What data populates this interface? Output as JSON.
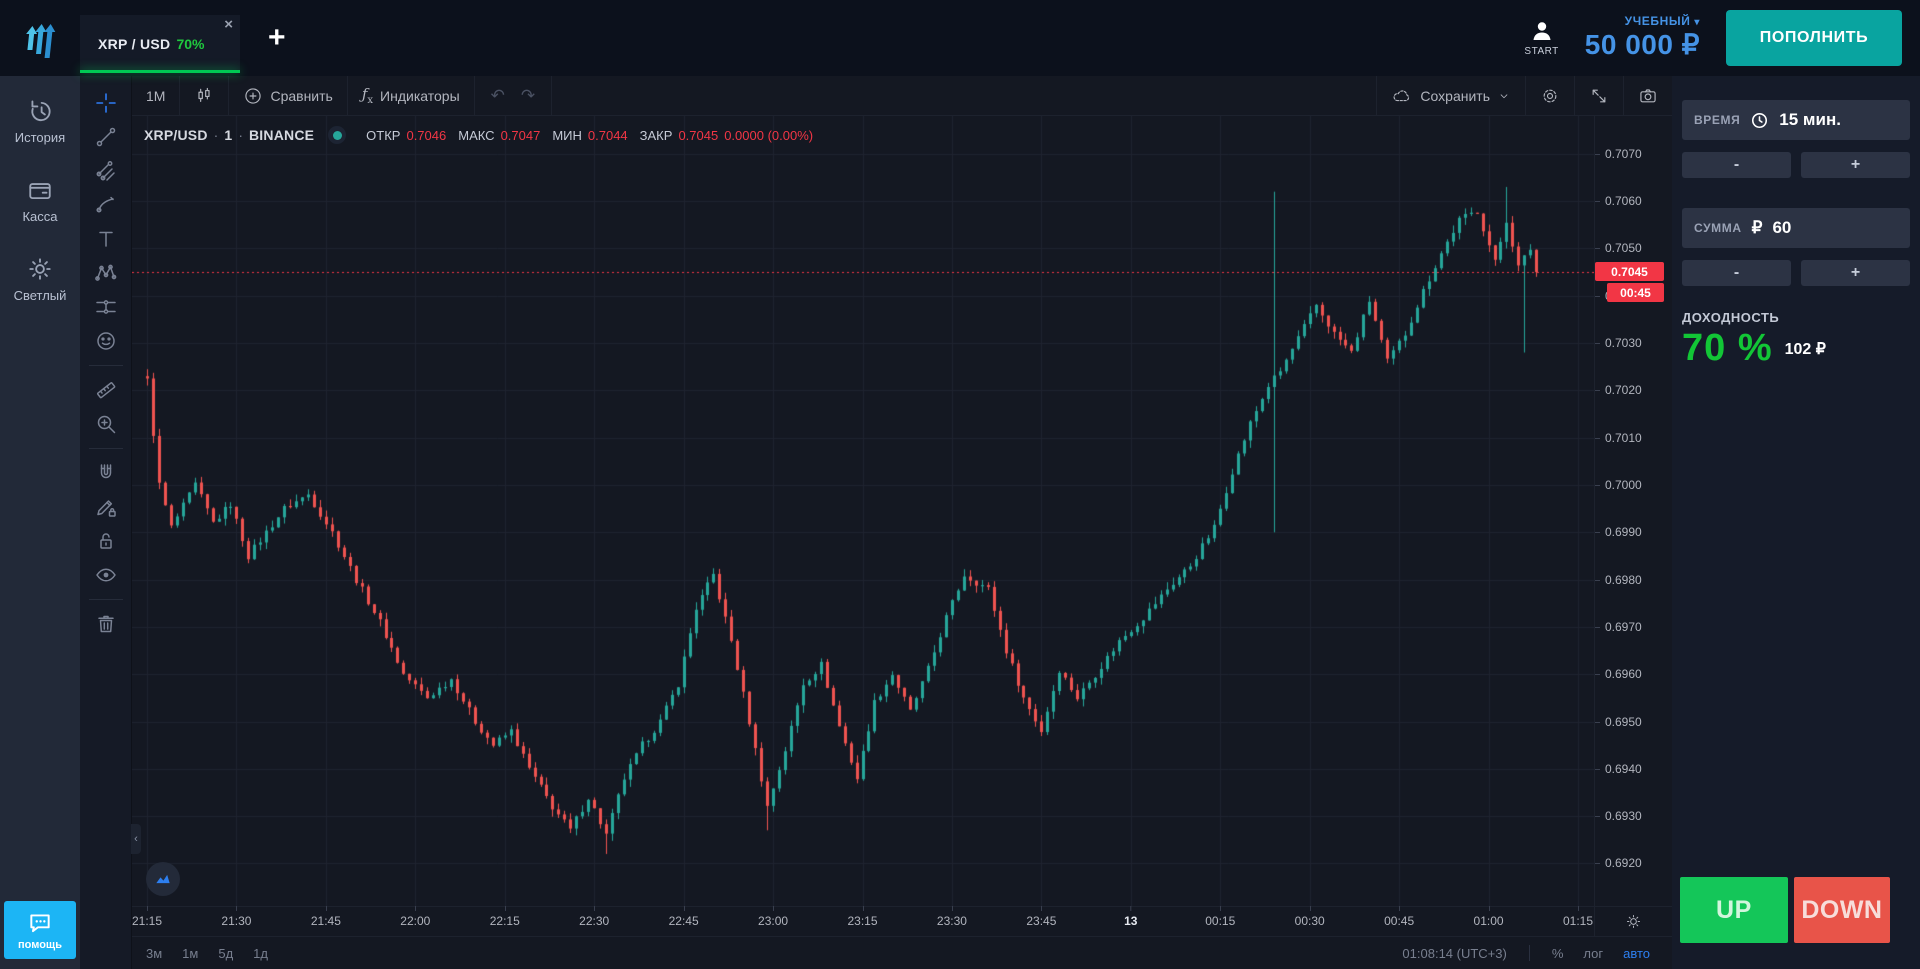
{
  "topbar": {
    "tab": {
      "symbol": "XRP / USD",
      "payout": "70%",
      "close": "×"
    },
    "new_tab": "+",
    "start_label": "START",
    "account_type": "УЧЕБНЫЙ",
    "account_caret": "▾",
    "balance": "50 000 ₽",
    "deposit_label": "ПОПОЛНИТЬ"
  },
  "sidebar": {
    "items": [
      {
        "label": "История",
        "icon": "history-icon"
      },
      {
        "label": "Касса",
        "icon": "wallet-icon"
      },
      {
        "label": "Светлый",
        "icon": "theme-sun-icon"
      }
    ],
    "help_label": "помощь"
  },
  "chart_toolbar": {
    "interval": "1М",
    "compare": "Сравнить",
    "indicators": "Индикаторы",
    "undo": "↶",
    "redo": "↷",
    "save": "Сохранить"
  },
  "legend": {
    "symbol": "XRP/USD",
    "sep": "·",
    "interval": "1",
    "exchange": "BINANCE",
    "open_label": "ОТКР",
    "open": "0.7046",
    "high_label": "МАКС",
    "high": "0.7047",
    "low_label": "МИН",
    "low": "0.7044",
    "close_label": "ЗАКР",
    "close": "0.7045",
    "change": "0.0000 (0.00%)"
  },
  "drawing_tools": [
    "crosshair",
    "trend-line",
    "gann-fib",
    "brush",
    "text",
    "xabcd-pattern",
    "projection",
    "emoji",
    "ruler",
    "zoom-in",
    "magnet",
    "drawing-lock",
    "lock-all",
    "hide-all",
    "remove-all"
  ],
  "trade_panel": {
    "time_label": "ВРЕМЯ",
    "time_value": "15 мин.",
    "minus": "-",
    "plus": "+",
    "amount_label": "СУММА",
    "currency": "₽",
    "amount_value": "60",
    "payout_label": "ДОХОДНОСТЬ",
    "payout_percent": "70 %",
    "payout_amount": "102 ₽",
    "up_label": "UP",
    "down_label": "DOWN"
  },
  "bottom_bar": {
    "ranges": [
      "3м",
      "1м",
      "5д",
      "1д"
    ],
    "clock": "01:08:14 (UTC+3)",
    "percent": "%",
    "log": "лог",
    "auto": "авто"
  },
  "collapse_glyph": "‹",
  "chart_data": {
    "type": "candlestick",
    "symbol": "XRP/USD",
    "exchange": "BINANCE",
    "interval_minutes": 1,
    "x_range": [
      "21:15",
      "01:15"
    ],
    "y_domain": [
      0.6911,
      0.7078
    ],
    "price_ticks": [
      "0.7070",
      "0.7060",
      "0.7050",
      "0.7040",
      "0.7030",
      "0.7020",
      "0.7010",
      "0.7000",
      "0.6990",
      "0.6980",
      "0.6970",
      "0.6960",
      "0.6950",
      "0.6940",
      "0.6930",
      "0.6920"
    ],
    "time_ticks": [
      {
        "m": 0,
        "label": "21:15"
      },
      {
        "m": 15,
        "label": "21:30"
      },
      {
        "m": 30,
        "label": "21:45"
      },
      {
        "m": 45,
        "label": "22:00"
      },
      {
        "m": 60,
        "label": "22:15"
      },
      {
        "m": 75,
        "label": "22:30"
      },
      {
        "m": 90,
        "label": "22:45"
      },
      {
        "m": 105,
        "label": "23:00"
      },
      {
        "m": 120,
        "label": "23:15"
      },
      {
        "m": 135,
        "label": "23:30"
      },
      {
        "m": 150,
        "label": "23:45"
      },
      {
        "m": 165,
        "label": "13",
        "strong": true
      },
      {
        "m": 180,
        "label": "00:15"
      },
      {
        "m": 195,
        "label": "00:30"
      },
      {
        "m": 210,
        "label": "00:45"
      },
      {
        "m": 225,
        "label": "01:00"
      },
      {
        "m": 240,
        "label": "01:15"
      }
    ],
    "current_price": 0.7045,
    "current_price_label": "0.7045",
    "countdown": "00:45",
    "last_minute": 233,
    "colors": {
      "up": "#26a69a",
      "down": "#ef5350",
      "price_line": "#f23645",
      "grid": "#1e2330",
      "background": "#141822"
    },
    "path_keypoints": [
      [
        0,
        0.7022
      ],
      [
        2,
        0.7
      ],
      [
        4,
        0.6991
      ],
      [
        8,
        0.7
      ],
      [
        11,
        0.6992
      ],
      [
        14,
        0.6996
      ],
      [
        17,
        0.6985
      ],
      [
        20,
        0.699
      ],
      [
        23,
        0.6995
      ],
      [
        27,
        0.6998
      ],
      [
        31,
        0.699
      ],
      [
        35,
        0.698
      ],
      [
        39,
        0.6971
      ],
      [
        43,
        0.696
      ],
      [
        47,
        0.6955
      ],
      [
        51,
        0.6959
      ],
      [
        55,
        0.695
      ],
      [
        58,
        0.6945
      ],
      [
        61,
        0.6948
      ],
      [
        64,
        0.694
      ],
      [
        68,
        0.6932
      ],
      [
        71,
        0.6927
      ],
      [
        74,
        0.6934
      ],
      [
        77,
        0.6926
      ],
      [
        80,
        0.6938
      ],
      [
        83,
        0.6945
      ],
      [
        86,
        0.695
      ],
      [
        89,
        0.6958
      ],
      [
        92,
        0.6974
      ],
      [
        95,
        0.6981
      ],
      [
        98,
        0.6967
      ],
      [
        101,
        0.695
      ],
      [
        104,
        0.6932
      ],
      [
        107,
        0.6944
      ],
      [
        110,
        0.6958
      ],
      [
        113,
        0.6962
      ],
      [
        116,
        0.6949
      ],
      [
        119,
        0.6938
      ],
      [
        122,
        0.6954
      ],
      [
        125,
        0.696
      ],
      [
        128,
        0.6952
      ],
      [
        131,
        0.6961
      ],
      [
        134,
        0.6972
      ],
      [
        137,
        0.6981
      ],
      [
        141,
        0.6978
      ],
      [
        144,
        0.6965
      ],
      [
        147,
        0.6955
      ],
      [
        150,
        0.6948
      ],
      [
        153,
        0.6961
      ],
      [
        156,
        0.6955
      ],
      [
        159,
        0.696
      ],
      [
        163,
        0.6967
      ],
      [
        167,
        0.6972
      ],
      [
        171,
        0.6978
      ],
      [
        175,
        0.6983
      ],
      [
        179,
        0.6991
      ],
      [
        182,
        0.7003
      ],
      [
        185,
        0.7013
      ],
      [
        188,
        0.7021
      ],
      [
        190,
        0.7024
      ],
      [
        193,
        0.7031
      ],
      [
        196,
        0.7038
      ],
      [
        199,
        0.7032
      ],
      [
        202,
        0.7028
      ],
      [
        205,
        0.7039
      ],
      [
        208,
        0.7026
      ],
      [
        211,
        0.7032
      ],
      [
        214,
        0.7041
      ],
      [
        217,
        0.7049
      ],
      [
        220,
        0.7056
      ],
      [
        223,
        0.7058
      ],
      [
        226,
        0.7047
      ],
      [
        228,
        0.7056
      ],
      [
        230,
        0.7046
      ],
      [
        232,
        0.705
      ],
      [
        233,
        0.7045
      ]
    ],
    "wick_overrides": [
      {
        "m": 189,
        "high": 0.7062,
        "low": 0.699
      },
      {
        "m": 77,
        "low": 0.6922
      },
      {
        "m": 104,
        "low": 0.6927
      },
      {
        "m": 228,
        "high": 0.7063
      },
      {
        "m": 231,
        "low": 0.7028
      }
    ]
  }
}
